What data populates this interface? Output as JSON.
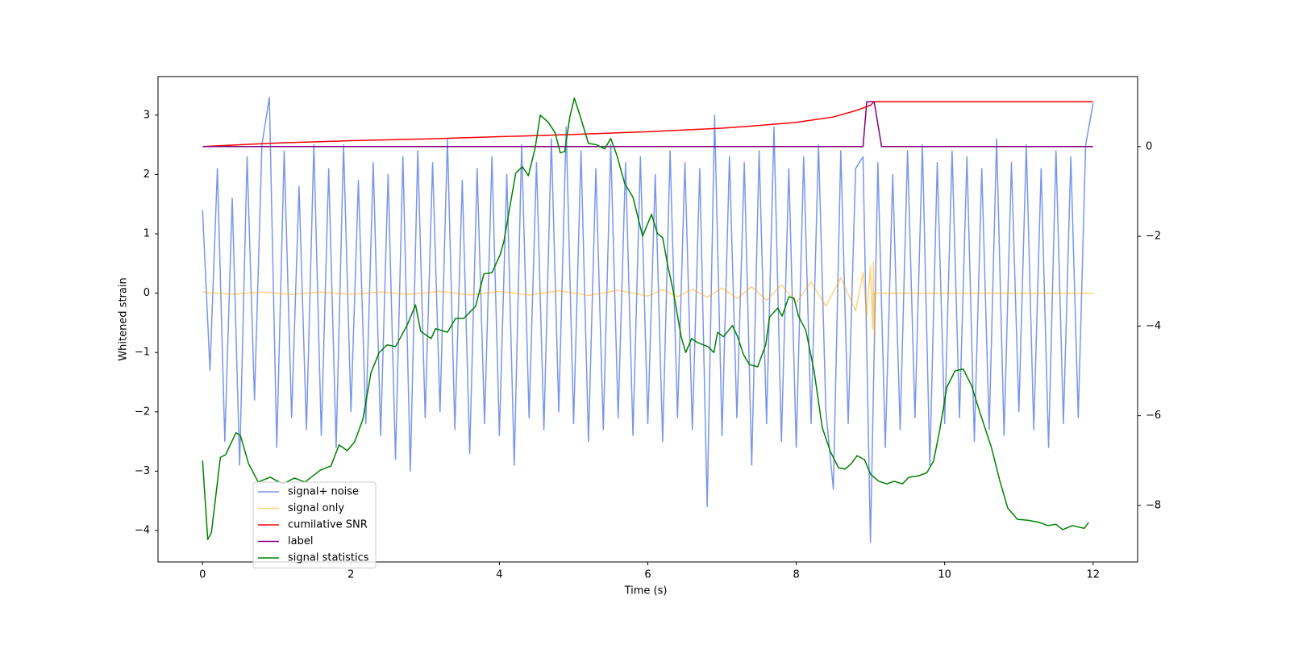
{
  "chart_data": {
    "type": "line",
    "xlabel": "Time (s)",
    "ylabel": "Whitened strain",
    "xlim": [
      -0.6,
      12.6
    ],
    "xticks": [
      0,
      2,
      4,
      6,
      8,
      10,
      12
    ],
    "ylim": [
      -4.53,
      3.65
    ],
    "yticks": [
      {
        "value": -4,
        "label": "−4"
      },
      {
        "value": -3,
        "label": "−3"
      },
      {
        "value": -2,
        "label": "−2"
      },
      {
        "value": -1,
        "label": "−1"
      },
      0,
      1,
      2,
      3
    ],
    "y2lim": [
      -9.26,
      1.56
    ],
    "y2ticks": [
      {
        "value": -8,
        "label": "−8"
      },
      {
        "value": -6,
        "label": "−6"
      },
      {
        "value": -4,
        "label": "−4"
      },
      {
        "value": -2,
        "label": "−2"
      },
      0
    ],
    "legend": "best",
    "series": [
      {
        "name": "signal+ noise",
        "color": "#4169e1",
        "alpha": 0.7,
        "x": [
          0,
          0.1,
          0.2,
          0.3,
          0.4,
          0.5,
          0.6,
          0.7,
          0.8,
          0.9,
          1,
          1.1,
          1.2,
          1.3,
          1.4,
          1.5,
          1.6,
          1.7,
          1.8,
          1.9,
          2,
          2.1,
          2.2,
          2.3,
          2.4,
          2.5,
          2.6,
          2.7,
          2.8,
          2.9,
          3,
          3.1,
          3.2,
          3.3,
          3.4,
          3.5,
          3.6,
          3.7,
          3.8,
          3.9,
          4,
          4.1,
          4.2,
          4.3,
          4.4,
          4.5,
          4.6,
          4.7,
          4.8,
          4.9,
          5,
          5.1,
          5.2,
          5.3,
          5.4,
          5.5,
          5.6,
          5.7,
          5.8,
          5.9,
          6,
          6.1,
          6.2,
          6.3,
          6.4,
          6.5,
          6.6,
          6.7,
          6.8,
          6.9,
          7,
          7.1,
          7.2,
          7.3,
          7.4,
          7.5,
          7.6,
          7.7,
          7.8,
          7.9,
          8,
          8.1,
          8.2,
          8.3,
          8.4,
          8.5,
          8.6,
          8.7,
          8.8,
          8.9,
          9,
          9.1,
          9.2,
          9.3,
          9.4,
          9.5,
          9.6,
          9.7,
          9.8,
          9.9,
          10,
          10.1,
          10.2,
          10.3,
          10.4,
          10.5,
          10.6,
          10.7,
          10.8,
          10.9,
          11,
          11.1,
          11.2,
          11.3,
          11.4,
          11.5,
          11.6,
          11.7,
          11.8,
          11.9,
          12
        ],
        "values": [
          1.4,
          -1.3,
          2.1,
          -2.5,
          1.6,
          -2.9,
          2.3,
          -1.8,
          2.5,
          3.3,
          -2.6,
          2.4,
          -2.1,
          1.8,
          -2.3,
          2.5,
          -2.4,
          2.1,
          -2.6,
          2.5,
          -2.0,
          1.9,
          -2.2,
          2.2,
          -2.4,
          2.0,
          -2.8,
          2.3,
          -3.0,
          2.4,
          -2.1,
          2.2,
          -2.0,
          2.6,
          -2.3,
          1.9,
          -2.7,
          2.1,
          -2.2,
          2.3,
          -2.4,
          2.0,
          -2.9,
          2.5,
          -2.1,
          2.2,
          -2.3,
          2.6,
          -2.0,
          2.8,
          -2.2,
          2.4,
          -2.5,
          2.1,
          -2.3,
          2.5,
          -2.1,
          2.2,
          -2.4,
          2.3,
          -2.2,
          2.0,
          -2.5,
          2.4,
          -2.1,
          2.2,
          -2.3,
          2.1,
          -3.6,
          3.0,
          -2.4,
          2.3,
          -2.1,
          2.2,
          -2.9,
          2.4,
          -2.2,
          2.8,
          -2.5,
          2.1,
          -2.6,
          2.3,
          -2.2,
          2.5,
          -2.0,
          -3.3,
          2.4,
          -2.2,
          2.1,
          2.3,
          -4.2,
          2.2,
          -2.6,
          2.0,
          -2.3,
          2.4,
          -2.1,
          2.5,
          -2.9,
          2.2,
          -2.2,
          2.4,
          -2.1,
          2.3,
          -2.5,
          2.1,
          -2.3,
          2.6,
          -2.4,
          2.2,
          -2.0,
          2.5,
          -2.3,
          2.1,
          -2.6,
          2.4,
          -2.2,
          2.3,
          -2.1,
          2.5,
          3.2
        ]
      },
      {
        "name": "signal only",
        "color": "#ffa500",
        "alpha": 0.5,
        "x": [
          0,
          0.4,
          0.8,
          1.2,
          1.6,
          2,
          2.4,
          2.8,
          3.2,
          3.6,
          4,
          4.4,
          4.8,
          5.2,
          5.6,
          6,
          6.2,
          6.4,
          6.6,
          6.8,
          7,
          7.2,
          7.4,
          7.6,
          7.8,
          8,
          8.2,
          8.4,
          8.6,
          8.8,
          8.9,
          8.95,
          9,
          9.03,
          9.04,
          9.05,
          9.06,
          12
        ],
        "values": [
          0.02,
          -0.02,
          0.02,
          -0.02,
          0.02,
          -0.02,
          0.02,
          -0.02,
          0.03,
          -0.03,
          0.03,
          -0.03,
          0.04,
          -0.04,
          0.05,
          -0.05,
          0.06,
          -0.06,
          0.07,
          -0.07,
          0.09,
          -0.09,
          0.11,
          -0.12,
          0.14,
          -0.16,
          0.19,
          -0.22,
          0.26,
          -0.3,
          0.35,
          -0.4,
          0.45,
          -0.6,
          0.52,
          -0.7,
          0,
          0
        ]
      },
      {
        "name": "cumilative SNR",
        "color": "#ff0000",
        "alpha": 1,
        "axis": "y2",
        "x": [
          0,
          1,
          2,
          3,
          4,
          5,
          6,
          7,
          7.5,
          8,
          8.5,
          8.8,
          9.0,
          9.05,
          12
        ],
        "values": [
          0,
          0.08,
          0.13,
          0.17,
          0.22,
          0.27,
          0.33,
          0.41,
          0.47,
          0.54,
          0.66,
          0.8,
          0.92,
          1.0,
          1.0
        ]
      },
      {
        "name": "label",
        "color": "#800080",
        "alpha": 1,
        "axis": "y2",
        "x": [
          0,
          8.9,
          8.95,
          9.05,
          9.15,
          12
        ],
        "values": [
          0,
          0,
          1,
          1,
          0,
          0
        ]
      },
      {
        "name": "signal statistics",
        "color": "#008000",
        "alpha": 1,
        "axis": "y2",
        "x": [
          0,
          0.07,
          0.12,
          0.24,
          0.31,
          0.45,
          0.51,
          0.62,
          0.75,
          0.91,
          1.08,
          1.24,
          1.38,
          1.59,
          1.73,
          1.84,
          1.95,
          2.05,
          2.16,
          2.27,
          2.38,
          2.49,
          2.6,
          2.76,
          2.87,
          2.94,
          3.08,
          3.14,
          3.3,
          3.41,
          3.52,
          3.68,
          3.79,
          3.9,
          4.01,
          4.06,
          4.22,
          4.31,
          4.39,
          4.48,
          4.55,
          4.66,
          4.75,
          4.82,
          4.88,
          4.95,
          5.01,
          5.09,
          5.2,
          5.31,
          5.42,
          5.5,
          5.58,
          5.69,
          5.8,
          5.93,
          6.05,
          6.13,
          6.2,
          6.27,
          6.34,
          6.45,
          6.51,
          6.59,
          6.67,
          6.81,
          6.89,
          6.94,
          7.02,
          7.14,
          7.21,
          7.29,
          7.37,
          7.48,
          7.59,
          7.64,
          7.75,
          7.81,
          7.9,
          7.97,
          8.03,
          8.13,
          8.24,
          8.35,
          8.46,
          8.57,
          8.66,
          8.74,
          8.82,
          8.92,
          9.0,
          9.11,
          9.22,
          9.32,
          9.43,
          9.52,
          9.65,
          9.76,
          9.85,
          9.93,
          10.03,
          10.14,
          10.25,
          10.36,
          10.47,
          10.63,
          10.74,
          10.85,
          10.98,
          11.12,
          11.28,
          11.39,
          11.5,
          11.59,
          11.72,
          11.88,
          11.94
        ],
        "values": [
          -7.0,
          -8.76,
          -8.6,
          -6.93,
          -6.87,
          -6.38,
          -6.44,
          -7.07,
          -7.48,
          -7.37,
          -7.52,
          -7.39,
          -7.48,
          -7.21,
          -7.12,
          -6.65,
          -6.78,
          -6.58,
          -6.08,
          -5.04,
          -4.59,
          -4.42,
          -4.46,
          -3.97,
          -3.53,
          -4.12,
          -4.28,
          -4.06,
          -4.14,
          -3.83,
          -3.83,
          -3.56,
          -2.84,
          -2.81,
          -2.41,
          -2.12,
          -0.59,
          -0.45,
          -0.65,
          -0.05,
          0.7,
          0.54,
          0.31,
          -0.14,
          -0.11,
          0.67,
          1.08,
          0.67,
          0.07,
          0.04,
          -0.05,
          0.18,
          -0.18,
          -0.83,
          -1.13,
          -2.0,
          -1.51,
          -1.94,
          -2.03,
          -2.66,
          -3.2,
          -4.24,
          -4.59,
          -4.28,
          -4.37,
          -4.46,
          -4.59,
          -4.14,
          -4.24,
          -3.99,
          -4.24,
          -4.64,
          -4.86,
          -4.91,
          -4.41,
          -3.8,
          -3.6,
          -3.78,
          -3.35,
          -3.38,
          -3.78,
          -4.1,
          -5.0,
          -6.26,
          -6.8,
          -7.16,
          -7.19,
          -7.07,
          -6.89,
          -6.98,
          -7.3,
          -7.46,
          -7.52,
          -7.46,
          -7.52,
          -7.37,
          -7.34,
          -7.27,
          -7.01,
          -6.35,
          -5.36,
          -5.0,
          -4.96,
          -5.32,
          -5.9,
          -6.71,
          -7.43,
          -8.06,
          -8.31,
          -8.33,
          -8.38,
          -8.45,
          -8.42,
          -8.54,
          -8.45,
          -8.51,
          -8.38
        ]
      }
    ]
  }
}
